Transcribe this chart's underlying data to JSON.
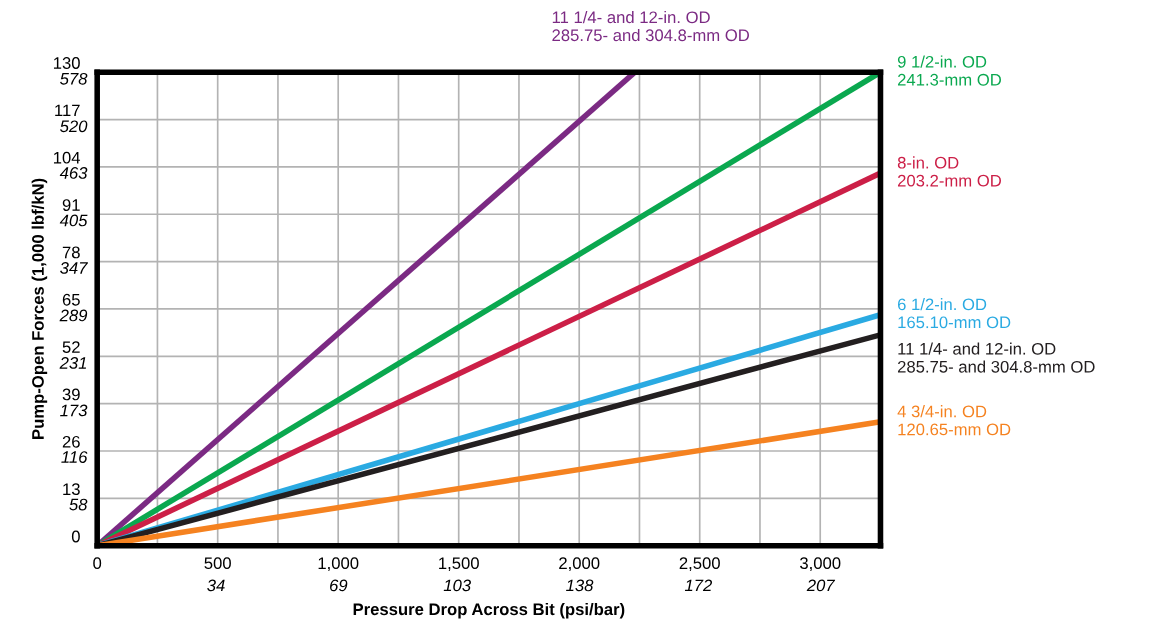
{
  "chart_data": {
    "type": "line",
    "xlabel": "Pressure Drop Across Bit (psi/bar)",
    "ylabel": "Pump-Open Forces (1,000 lbf/kN)",
    "xlim": [
      0,
      3250
    ],
    "ylim": [
      0,
      130
    ],
    "xticks": [
      0,
      {
        "value": 250,
        "label": null
      },
      {
        "value": 500,
        "label": "500"
      },
      {
        "value": 750,
        "label": null
      },
      {
        "value": 1000,
        "label": "1,000"
      },
      {
        "value": 1250,
        "label": null
      },
      {
        "value": 1500,
        "label": "1,500"
      },
      {
        "value": 1750,
        "label": null
      },
      {
        "value": 2000,
        "label": "2,000"
      },
      {
        "value": 2250,
        "label": null
      },
      {
        "value": 2500,
        "label": "2,500"
      },
      {
        "value": 2750,
        "label": null
      },
      {
        "value": 3000,
        "label": "3,000"
      }
    ],
    "yticks": [
      0,
      13,
      26,
      39,
      52,
      65,
      78,
      91,
      104,
      117,
      130
    ],
    "x2lim": [
      0,
      224.1
    ],
    "x2ticks": [
      34,
      69,
      103,
      138,
      172,
      207
    ],
    "y2lim": [
      0,
      578.3
    ],
    "y2ticks": [
      58,
      116,
      173,
      231,
      289,
      347,
      405,
      463,
      520,
      578
    ],
    "grid": true,
    "legend": false,
    "marker": "none",
    "line_style": "solid",
    "series": [
      {
        "name": "11 1/4- and 12-in. OD\n285.75- and 304.8-mm OD",
        "color": "#7b2a83",
        "x": [
          0,
          2231
        ],
        "values": [
          0,
          130
        ]
      },
      {
        "name": "9 1/2-in. OD\n241.3-mm OD",
        "color": "#0aa84f",
        "x": [
          0,
          3250
        ],
        "values": [
          0,
          130
        ]
      },
      {
        "name": "8-in. OD\n203.2-mm OD",
        "color": "#cc1f47",
        "x": [
          0,
          3250
        ],
        "values": [
          0,
          102.3
        ]
      },
      {
        "name": "6 1/2-in. OD\n165.10-mm OD",
        "color": "#2aaae2",
        "x": [
          0,
          3250
        ],
        "values": [
          0,
          63.4
        ]
      },
      {
        "name": "11 1/4- and 12-in. OD\n285.75- and 304.8-mm OD",
        "color": "#231f20",
        "x": [
          0,
          3250
        ],
        "values": [
          0,
          57.9
        ]
      },
      {
        "name": "4 3/4-in. OD\n120.65-mm OD",
        "color": "#f58220",
        "x": [
          0,
          3250
        ],
        "values": [
          0,
          34.0
        ]
      }
    ]
  }
}
